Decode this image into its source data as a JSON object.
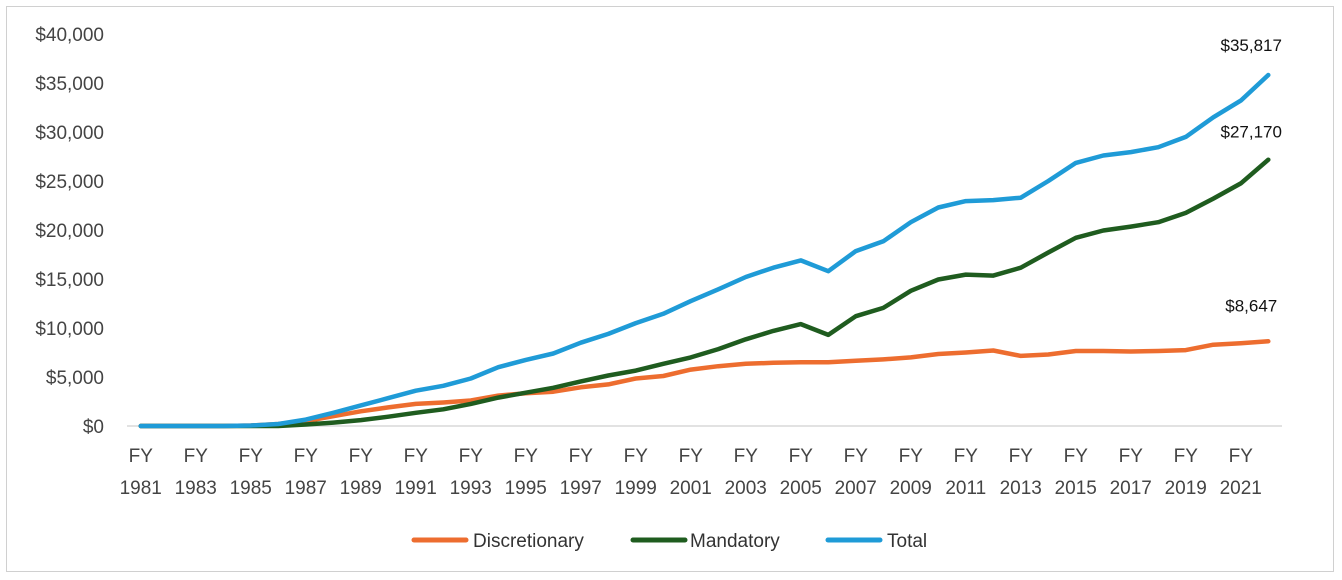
{
  "chart_data": {
    "type": "line",
    "title": "",
    "xlabel": "",
    "ylabel": "",
    "ylim": [
      0,
      40000
    ],
    "y_ticks": [
      "$0",
      "$5,000",
      "$10,000",
      "$15,000",
      "$20,000",
      "$25,000",
      "$30,000",
      "$35,000",
      "$40,000"
    ],
    "y_tick_values": [
      0,
      5000,
      10000,
      15000,
      20000,
      25000,
      30000,
      35000,
      40000
    ],
    "x": [
      "FY 1981",
      "FY 1982",
      "FY 1983",
      "FY 1984",
      "FY 1985",
      "FY 1986",
      "FY 1987",
      "FY 1988",
      "FY 1989",
      "FY 1990",
      "FY 1991",
      "FY 1992",
      "FY 1993",
      "FY 1994",
      "FY 1995",
      "FY 1996",
      "FY 1997",
      "FY 1998",
      "FY 1999",
      "FY 2000",
      "FY 2001",
      "FY 2002",
      "FY 2003",
      "FY 2004",
      "FY 2005",
      "FY 2006",
      "FY 2007",
      "FY 2008",
      "FY 2009",
      "FY 2010",
      "FY 2011",
      "FY 2012",
      "FY 2013",
      "FY 2014",
      "FY 2015",
      "FY 2016",
      "FY 2017",
      "FY 2018",
      "FY 2019",
      "FY 2020",
      "FY 2021",
      "FY 2022"
    ],
    "x_tick_labels": [
      {
        "line1": "FY",
        "line2": "1981"
      },
      {
        "line1": "FY",
        "line2": "1983"
      },
      {
        "line1": "FY",
        "line2": "1985"
      },
      {
        "line1": "FY",
        "line2": "1987"
      },
      {
        "line1": "FY",
        "line2": "1989"
      },
      {
        "line1": "FY",
        "line2": "1991"
      },
      {
        "line1": "FY",
        "line2": "1993"
      },
      {
        "line1": "FY",
        "line2": "1995"
      },
      {
        "line1": "FY",
        "line2": "1997"
      },
      {
        "line1": "FY",
        "line2": "1999"
      },
      {
        "line1": "FY",
        "line2": "2001"
      },
      {
        "line1": "FY",
        "line2": "2003"
      },
      {
        "line1": "FY",
        "line2": "2005"
      },
      {
        "line1": "FY",
        "line2": "2007"
      },
      {
        "line1": "FY",
        "line2": "2009"
      },
      {
        "line1": "FY",
        "line2": "2011"
      },
      {
        "line1": "FY",
        "line2": "2013"
      },
      {
        "line1": "FY",
        "line2": "2015"
      },
      {
        "line1": "FY",
        "line2": "2017"
      },
      {
        "line1": "FY",
        "line2": "2019"
      },
      {
        "line1": "FY",
        "line2": "2021"
      }
    ],
    "series": [
      {
        "name": "Discretionary",
        "color": "#ed6d2f",
        "values": [
          0,
          0,
          0,
          0,
          50,
          200,
          500,
          1000,
          1500,
          1900,
          2250,
          2400,
          2600,
          3100,
          3350,
          3500,
          3950,
          4250,
          4850,
          5100,
          5750,
          6100,
          6350,
          6450,
          6500,
          6500,
          6650,
          6800,
          7000,
          7350,
          7500,
          7700,
          7150,
          7300,
          7650,
          7650,
          7600,
          7650,
          7750,
          8300,
          8450,
          8647
        ],
        "end_label": "$8,647"
      },
      {
        "name": "Mandatory",
        "color": "#1f5c1f",
        "values": [
          0,
          0,
          0,
          0,
          0,
          0,
          150,
          350,
          600,
          950,
          1350,
          1700,
          2250,
          2900,
          3400,
          3900,
          4550,
          5150,
          5650,
          6350,
          7000,
          7850,
          8850,
          9700,
          10400,
          9300,
          11200,
          12050,
          13800,
          14950,
          15450,
          15350,
          16150,
          17700,
          19200,
          19950,
          20350,
          20800,
          21750,
          23200,
          24750,
          27170
        ],
        "end_label": "$27,170"
      },
      {
        "name": "Total",
        "color": "#1f9bd7",
        "values": [
          0,
          0,
          0,
          0,
          50,
          200,
          650,
          1350,
          2100,
          2850,
          3600,
          4100,
          4850,
          6000,
          6750,
          7400,
          8500,
          9400,
          10500,
          11450,
          12750,
          13950,
          15200,
          16150,
          16900,
          15800,
          17850,
          18850,
          20800,
          22300,
          22950,
          23050,
          23300,
          25000,
          26850,
          27600,
          27950,
          28450,
          29500,
          31500,
          33200,
          35817
        ],
        "end_label": "$35,817"
      }
    ],
    "legend_position": "bottom",
    "grid": false
  }
}
